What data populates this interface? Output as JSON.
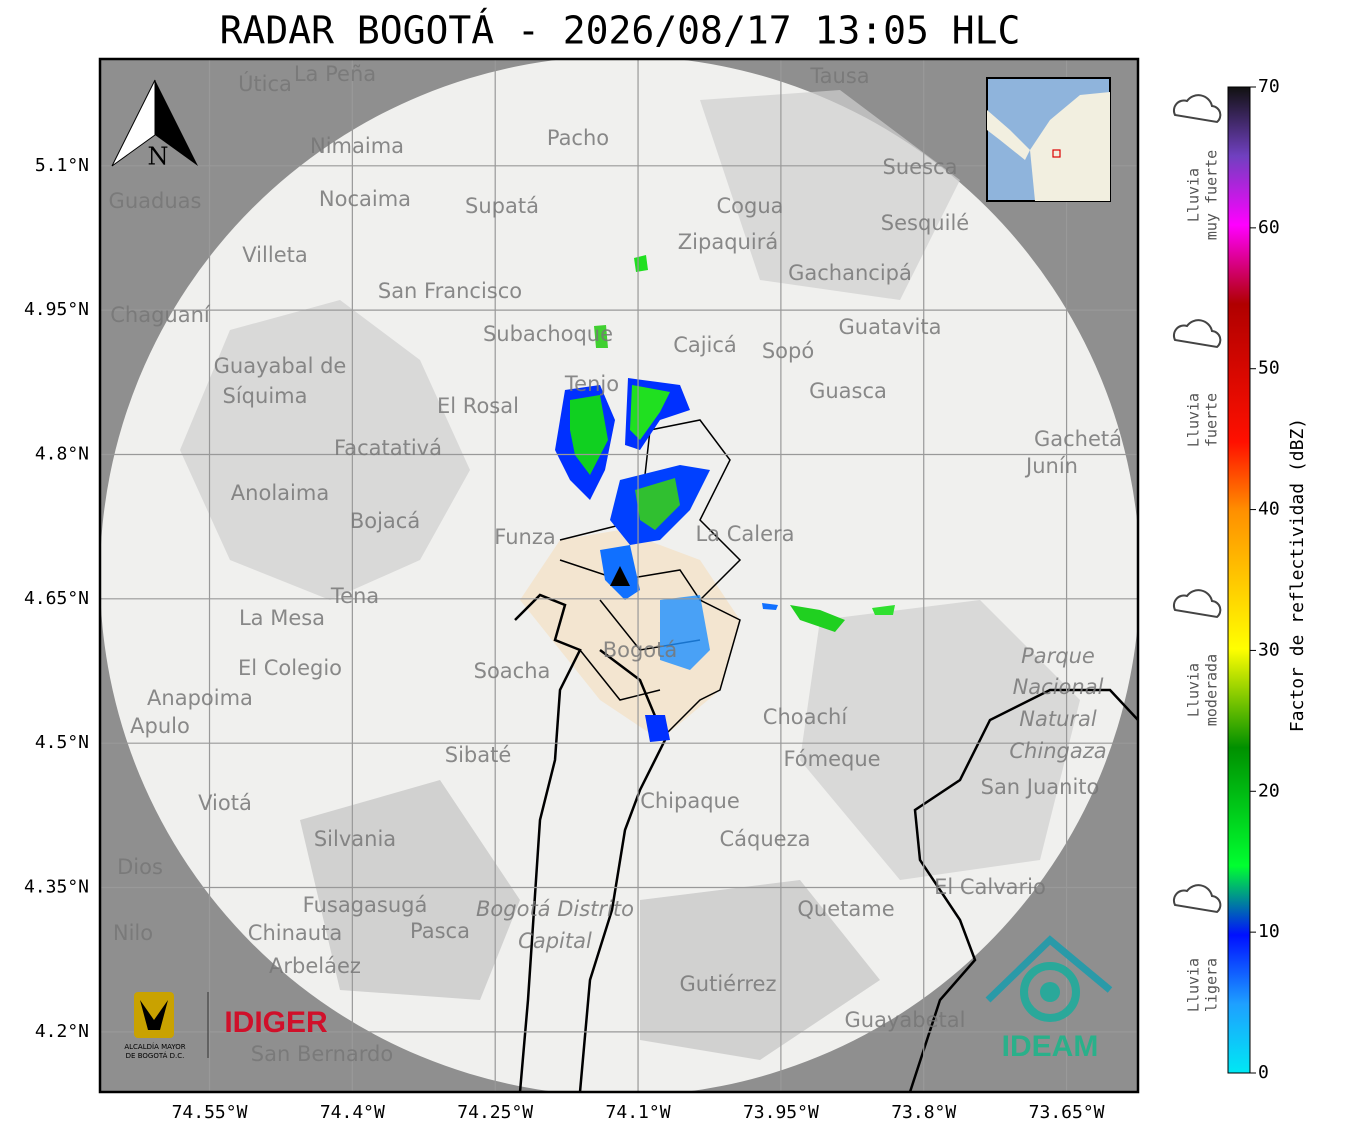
{
  "title": "RADAR BOGOTÁ - 2026/08/17 13:05 HLC",
  "map": {
    "lon_range": [
      -74.665,
      -73.575
    ],
    "lat_range": [
      4.1375,
      5.211
    ],
    "lon_ticks": [
      {
        "value": -74.55,
        "label": "74.55°W"
      },
      {
        "value": -74.4,
        "label": "74.4°W"
      },
      {
        "value": -74.25,
        "label": "74.25°W"
      },
      {
        "value": -74.1,
        "label": "74.1°W"
      },
      {
        "value": -73.95,
        "label": "73.95°W"
      },
      {
        "value": -73.8,
        "label": "73.8°W"
      },
      {
        "value": -73.65,
        "label": "73.65°W"
      }
    ],
    "lat_ticks": [
      {
        "value": 5.1,
        "label": "5.1°N"
      },
      {
        "value": 4.95,
        "label": "4.95°N"
      },
      {
        "value": 4.8,
        "label": "4.8°N"
      },
      {
        "value": 4.65,
        "label": "4.65°N"
      },
      {
        "value": 4.5,
        "label": "4.5°N"
      },
      {
        "value": 4.35,
        "label": "4.35°N"
      },
      {
        "value": 4.2,
        "label": "4.2°N"
      }
    ],
    "north": "N",
    "places": [
      "La Peña",
      "Útica",
      "Tausa",
      "Pacho",
      "Nimaima",
      "Suesca",
      "Guaduas",
      "Nocaima",
      "Supatá",
      "Cogua",
      "Sesquilé",
      "Zipaquirá",
      "Villeta",
      "Gachancipá",
      "San Francisco",
      "Chaguaní",
      "Guatavita",
      "Subachoque",
      "Cajicá",
      "Sopó",
      "Guayabal de",
      "Síquima",
      "Tenjo",
      "El Rosal",
      "Guasca",
      "Gachetá",
      "Junín",
      "Facatativá",
      "Anolaima",
      "Bojacá",
      "Funza",
      "La Calera",
      "Tena",
      "La Mesa",
      "El Colegio",
      "Soacha",
      "Bogotá",
      "Anapoima",
      "Apulo",
      "Choachí",
      "Sibaté",
      "Fómeque",
      "San Juanito",
      "Viotá",
      "Chipaque",
      "Silvania",
      "Cáqueza",
      "Dios",
      "El Calvario",
      "Fusagasugá",
      "Quetame",
      "Pasca",
      "Nilo",
      "Chinauta",
      "Arbeláez",
      "Gutiérrez",
      "Guayabetal",
      "San Bernardo"
    ],
    "parks": [
      "Parque",
      "Nacional",
      "Natural",
      "Chingaza",
      "Bogotá Distrito",
      "Capital"
    ]
  },
  "colorbar": {
    "label": "Factor de reflectividad (dBZ)",
    "range": [
      0,
      70
    ],
    "ticks": [
      0,
      10,
      20,
      30,
      40,
      50,
      60,
      70
    ]
  },
  "intensity": [
    [
      "Lluvia",
      "muy fuerte"
    ],
    [
      "Lluvia",
      "fuerte"
    ],
    [
      "Lluvia",
      "moderada"
    ],
    [
      "Lluvia",
      "ligera"
    ]
  ],
  "logos": {
    "alcaldia": [
      "ALCALDÍA MAYOR",
      "DE BOGOTÁ D.C."
    ],
    "idiger": "IDIGER",
    "ideam": "IDEAM"
  }
}
